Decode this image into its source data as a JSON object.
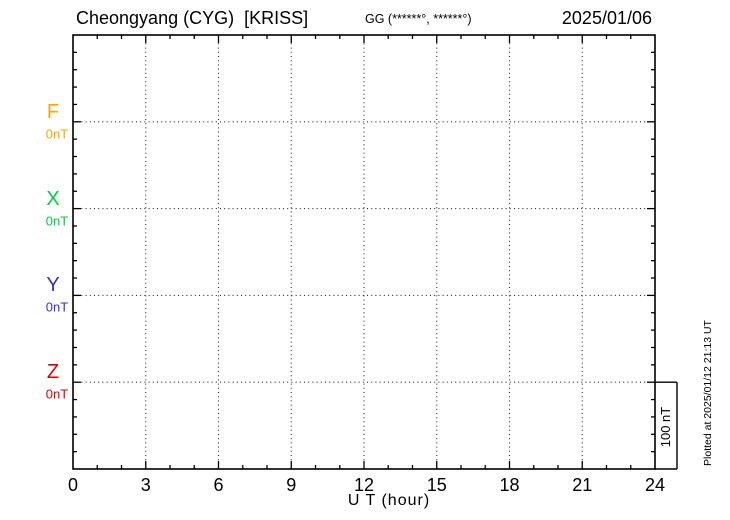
{
  "header": {
    "station_title": "Cheongyang (CYG)  [KRISS]",
    "coordinates_label": "GG (******°, ******°)",
    "date": "2025/01/06"
  },
  "axis": {
    "xlabel": "U T (hour)"
  },
  "scale_bar": {
    "label": "100 nT"
  },
  "plotted_note": "Plotted at 2025/01/12 21:13 UT",
  "chart_data": {
    "type": "line",
    "title": "Cheongyang (CYG) [KRISS]",
    "subtitle": "GG (******°, ******°)",
    "date_shown": "2025/01/06",
    "xlabel": "U T (hour)",
    "xlim": [
      0,
      24
    ],
    "x_major_ticks": [
      0,
      3,
      6,
      9,
      12,
      15,
      18,
      21,
      24
    ],
    "x_minor_step_hours": 1,
    "y_axis": {
      "minor_tick_nT": 20,
      "baseline_spacing_nT": 100,
      "scale_bar_nT": 100,
      "scale_bar_label": "100 nT"
    },
    "grid_style": "dotted",
    "grid_x_hours": [
      3,
      6,
      9,
      12,
      15,
      18,
      21
    ],
    "legend_position": "left-margin",
    "series": [
      {
        "name": "F",
        "baseline_label": "0nT",
        "baseline_value_nT": 0,
        "color": "#FFA500",
        "x": [],
        "y": []
      },
      {
        "name": "X",
        "baseline_label": "0nT",
        "baseline_value_nT": 0,
        "color": "#00CC44",
        "x": [],
        "y": []
      },
      {
        "name": "Y",
        "baseline_label": "0nT",
        "baseline_value_nT": 0,
        "color": "#3333CC",
        "x": [],
        "y": []
      },
      {
        "name": "Z",
        "baseline_label": "0nT",
        "baseline_value_nT": 0,
        "color": "#DD0000",
        "x": [],
        "y": []
      }
    ],
    "data_note": "No data traces are drawn; only the 0 nT dotted baselines for F, X, Y, Z and the 3-hour dotted grid are visible."
  }
}
